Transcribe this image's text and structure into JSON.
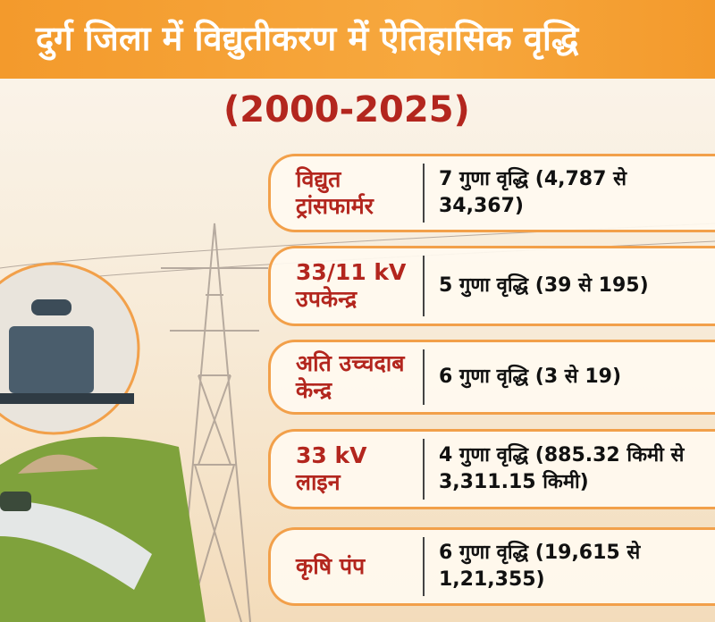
{
  "header": {
    "title": "दुर्ग जिला में विद्युतीकरण में ऐतिहासिक वृद्धि",
    "subtitle": "(2000-2025)"
  },
  "items": [
    {
      "label": [
        "विद्युत",
        "ट्रांसफार्मर"
      ],
      "text": "7 गुणा वृद्धि (4,787 से 34,367)"
    },
    {
      "label": [
        "33/11 kV",
        "उपकेन्द्र"
      ],
      "text": "5 गुणा वृद्धि (39 से 195)"
    },
    {
      "label": [
        "अति उच्चदाब",
        "केन्द्र"
      ],
      "text": "6 गुणा वृद्धि (3 से 19)"
    },
    {
      "label": [
        "33 kV",
        "लाइन"
      ],
      "text": "4 गुणा वृद्धि (885.32 किमी से 3,311.15 किमी)"
    },
    {
      "label": [
        "कृषि पंप"
      ],
      "text": "6 गुणा वृद्धि (19,615 से 1,21,355)"
    }
  ]
}
